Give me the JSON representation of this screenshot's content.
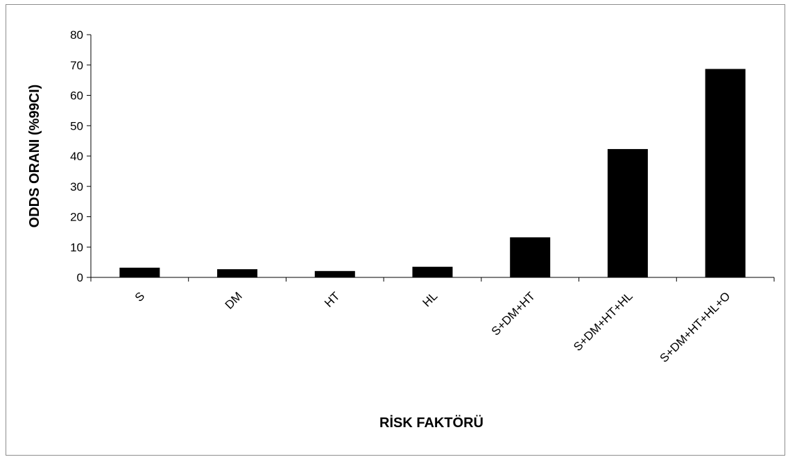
{
  "chart_data": {
    "type": "bar",
    "title": "",
    "xlabel": "RİSK FAKTÖRÜ",
    "ylabel": "ODDS ORANI (%99CI)",
    "categories": [
      "S",
      "DM",
      "HT",
      "HL",
      "S+DM+HT",
      "S+DM+HT+HL",
      "S+DM+HT+HL+O"
    ],
    "values": [
      3.2,
      2.7,
      2.1,
      3.5,
      13.2,
      42.3,
      68.7
    ],
    "ylim": [
      0,
      80
    ],
    "yticks": [
      "0",
      "10",
      "20",
      "30",
      "40",
      "50",
      "60",
      "70",
      "80"
    ],
    "grid": false,
    "legend": "none",
    "bar_color": "#000000"
  }
}
